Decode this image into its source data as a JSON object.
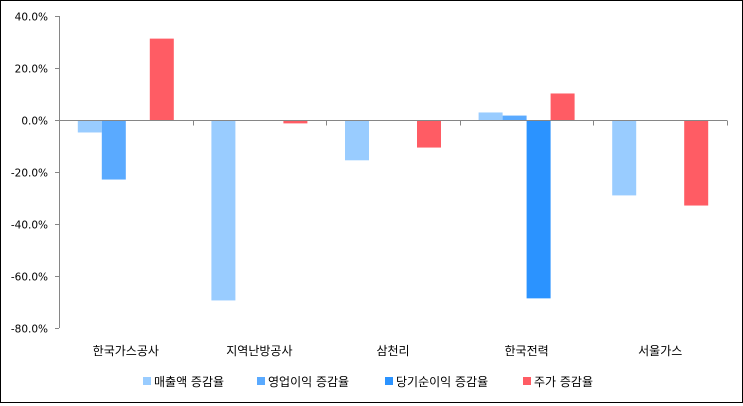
{
  "chart_data": {
    "type": "bar",
    "title": "",
    "xlabel": "",
    "ylabel": "",
    "ylim": [
      -80,
      40
    ],
    "yticks": [
      40,
      20,
      0,
      -20,
      -40,
      -60,
      -80
    ],
    "ytick_labels": [
      "40.0%",
      "20.0%",
      "0.0%",
      "-20.0%",
      "-40.0%",
      "-60.0%",
      "-80.0%"
    ],
    "grid": false,
    "legend_position": "bottom",
    "categories": [
      "한국가스공사",
      "지역난방공사",
      "삼천리",
      "한국전력",
      "서울가스"
    ],
    "series": [
      {
        "name": "매출액 증감율",
        "color": "#99CCFF",
        "values": [
          -4.8,
          -69.4,
          -15.5,
          2.9,
          -29.0
        ]
      },
      {
        "name": "영업이익 증감율",
        "color": "#5AAAFF",
        "values": [
          -22.9,
          null,
          null,
          1.7,
          null
        ]
      },
      {
        "name": "당기순이익 증감율",
        "color": "#2B93FF",
        "values": [
          null,
          null,
          null,
          -68.6,
          null
        ]
      },
      {
        "name": "주가 증감율",
        "color": "#FF5C64",
        "values": [
          31.3,
          -1.3,
          -10.6,
          10.2,
          -32.9
        ]
      }
    ]
  }
}
